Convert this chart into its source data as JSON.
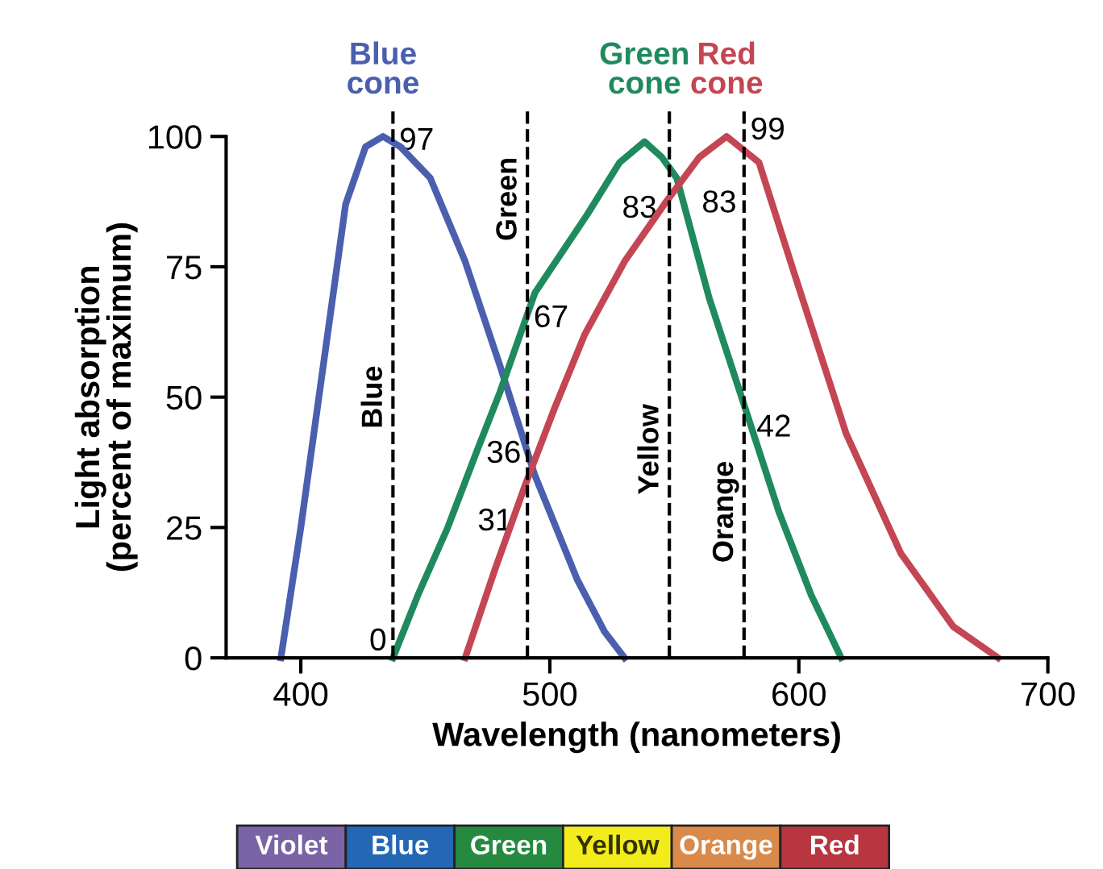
{
  "chart_data": {
    "type": "line",
    "xlabel": "Wavelength (nanometers)",
    "ylabel": "Light absorption\n(percent of maximum)",
    "xlim": [
      370,
      700
    ],
    "xticks": [
      400,
      500,
      600,
      700
    ],
    "ylim": [
      0,
      100
    ],
    "yticks": [
      0,
      25,
      50,
      75,
      100
    ],
    "grid": false,
    "legend": false,
    "marker": "none",
    "line_style": "solid",
    "series": [
      {
        "name": "Blue\ncone",
        "color": "#4a5fae",
        "x": [
          392,
          400,
          409,
          418,
          426,
          433,
          440,
          452,
          466,
          480,
          494,
          511,
          522,
          530
        ],
        "values": [
          0,
          25,
          56,
          87,
          98,
          100,
          98,
          92,
          76,
          56,
          35,
          15,
          5,
          0
        ]
      },
      {
        "name": "Green\ncone",
        "color": "#1f8a5e",
        "x": [
          437,
          447,
          459,
          471,
          480,
          494,
          515,
          528,
          538,
          545,
          551,
          564,
          577,
          592,
          605,
          617
        ],
        "values": [
          0,
          12,
          25,
          40,
          51,
          70,
          85,
          95,
          99,
          96,
          92,
          69,
          50,
          28,
          12,
          0
        ]
      },
      {
        "name": "Red\ncone",
        "color": "#c44553",
        "x": [
          466,
          478,
          490,
          502,
          514,
          530,
          546,
          560,
          571,
          584,
          598,
          619,
          641,
          662,
          680
        ],
        "values": [
          0,
          17,
          33,
          48,
          62,
          76,
          87,
          96,
          100,
          95,
          74,
          43,
          20,
          6,
          0
        ]
      }
    ],
    "ref_lines": [
      {
        "axis": "x",
        "value": 437,
        "label": "Blue",
        "line_style": "dashed",
        "color": "#000000"
      },
      {
        "axis": "x",
        "value": 491,
        "label": "Green",
        "line_style": "dashed",
        "color": "#000000"
      },
      {
        "axis": "x",
        "value": 548,
        "label": "Yellow",
        "line_style": "dashed",
        "color": "#000000"
      },
      {
        "axis": "x",
        "value": 578,
        "label": "Orange",
        "line_style": "dashed",
        "color": "#000000"
      }
    ],
    "annotations": [
      {
        "text": "97",
        "x": 437,
        "y": 97
      },
      {
        "text": "0",
        "x": 437,
        "y": 0
      },
      {
        "text": "36",
        "x": 491,
        "y": 36
      },
      {
        "text": "31",
        "x": 491,
        "y": 31
      },
      {
        "text": "67",
        "x": 491,
        "y": 67
      },
      {
        "text": "83",
        "x": 548,
        "y": 83
      },
      {
        "text": "83",
        "x": 548,
        "y": 83
      },
      {
        "text": "99",
        "x": 578,
        "y": 99
      },
      {
        "text": "42",
        "x": 578,
        "y": 42
      },
      "Violet",
      "Blue",
      "Green",
      "Yellow",
      "Orange",
      "Red"
    ]
  }
}
